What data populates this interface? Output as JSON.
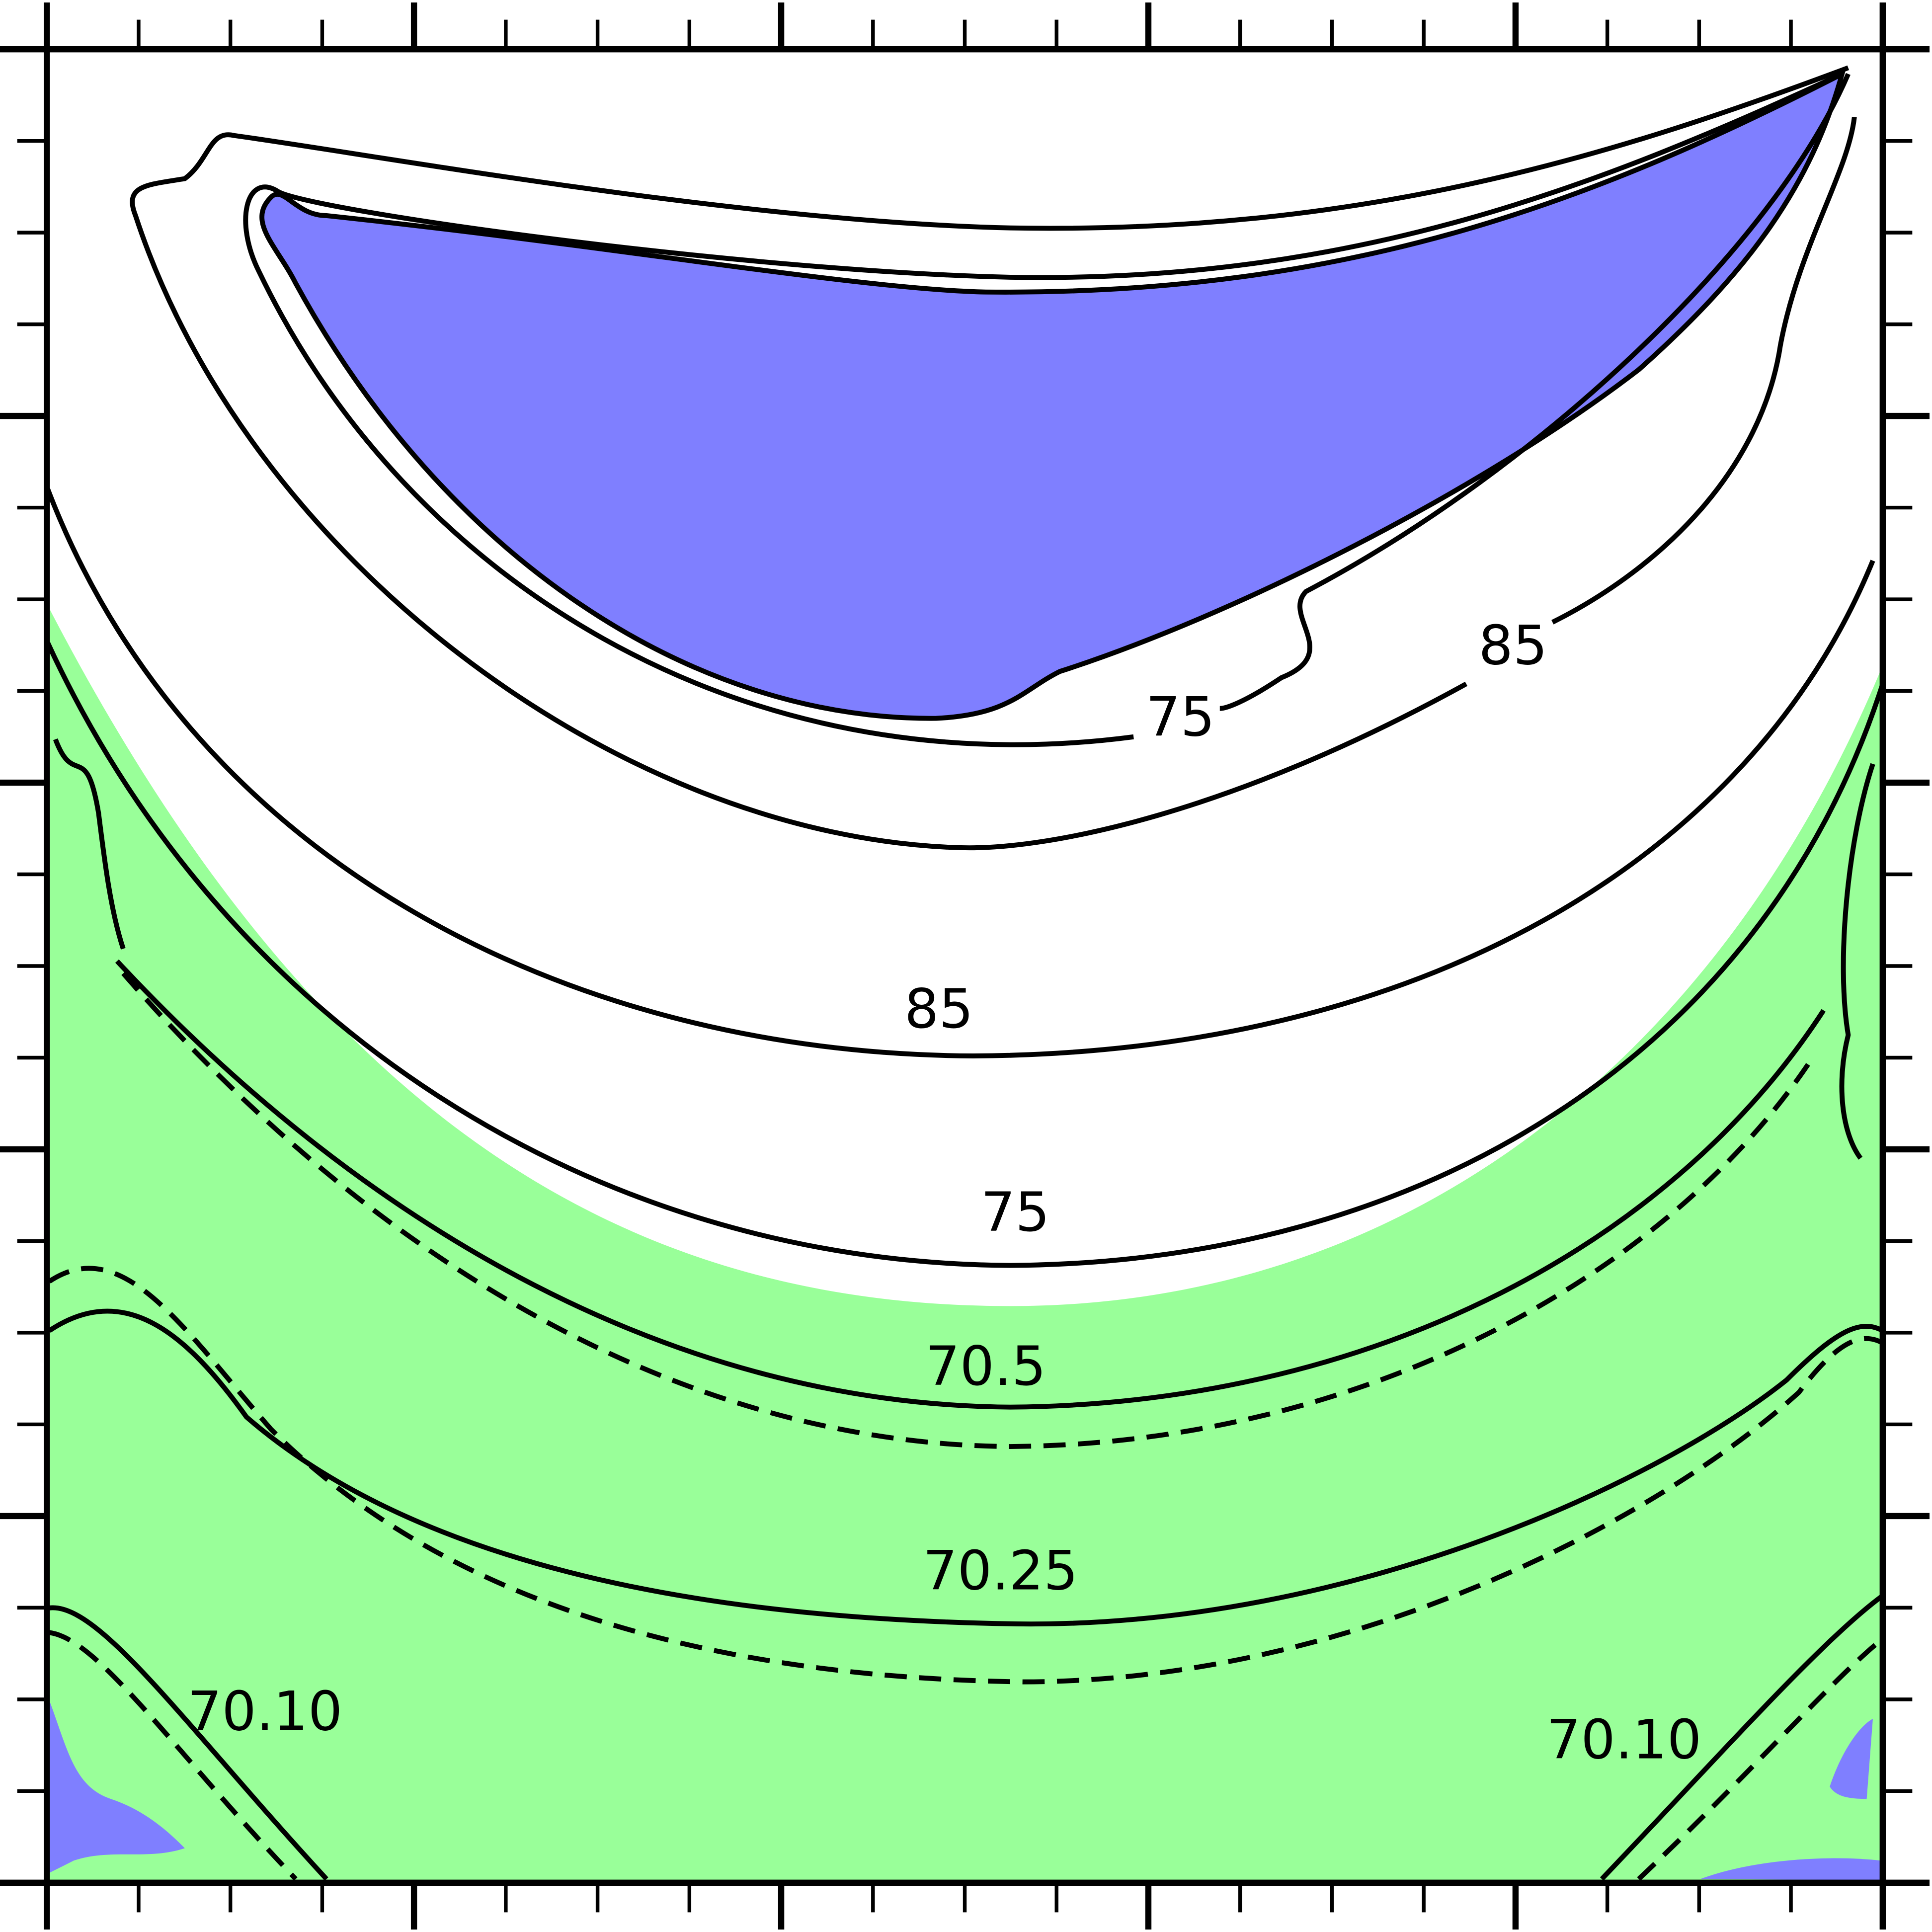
{
  "chart_data": {
    "type": "contour",
    "annotations": [
      "75",
      "85",
      "85",
      "75",
      "70.5",
      "70.25",
      "70.10",
      "70.10"
    ]
  }
}
